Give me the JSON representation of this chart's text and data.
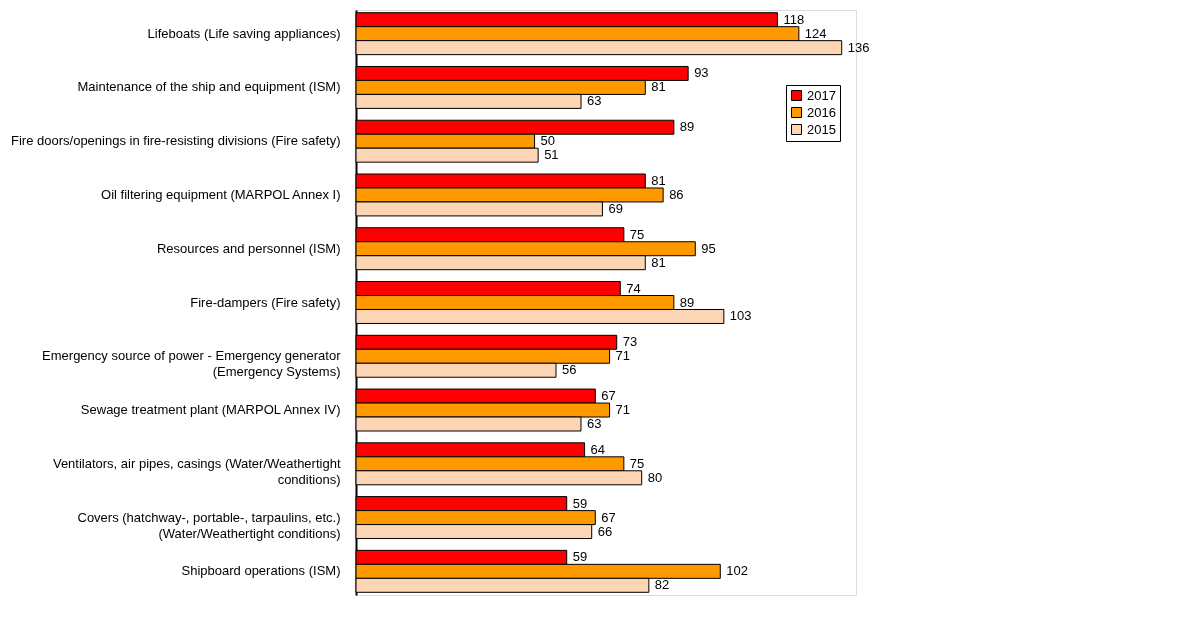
{
  "chart_data": {
    "type": "bar",
    "orientation": "horizontal",
    "data_labels": true,
    "legend": "top right",
    "grid": false,
    "categories": [
      "Lifeboats (Life saving appliances)",
      "Maintenance of the ship and equipment (ISM)",
      "Fire doors/openings in fire-resisting divisions (Fire safety)",
      "Oil filtering equipment (MARPOL Annex I)",
      "Resources and personnel (ISM)",
      "Fire-dampers (Fire safety)",
      "Emergency source of power - Emergency generator\n(Emergency Systems)",
      "Sewage treatment plant (MARPOL Annex IV)",
      "Ventilators, air pipes, casings (Water/Weathertight\nconditions)",
      "Covers (hatchway-, portable-, tarpaulins, etc.)\n(Water/Weathertight conditions)",
      "Shipboard operations (ISM)"
    ],
    "series": [
      {
        "name": "2017",
        "color": "#ff0000",
        "values": [
          118,
          93,
          89,
          81,
          75,
          74,
          73,
          67,
          64,
          59,
          59
        ]
      },
      {
        "name": "2016",
        "color": "#ff9900",
        "values": [
          124,
          81,
          50,
          86,
          95,
          89,
          71,
          71,
          75,
          67,
          102
        ]
      },
      {
        "name": "2015",
        "color": "#fcd5b4",
        "values": [
          136,
          63,
          51,
          69,
          81,
          103,
          56,
          63,
          80,
          66,
          82
        ]
      }
    ]
  }
}
